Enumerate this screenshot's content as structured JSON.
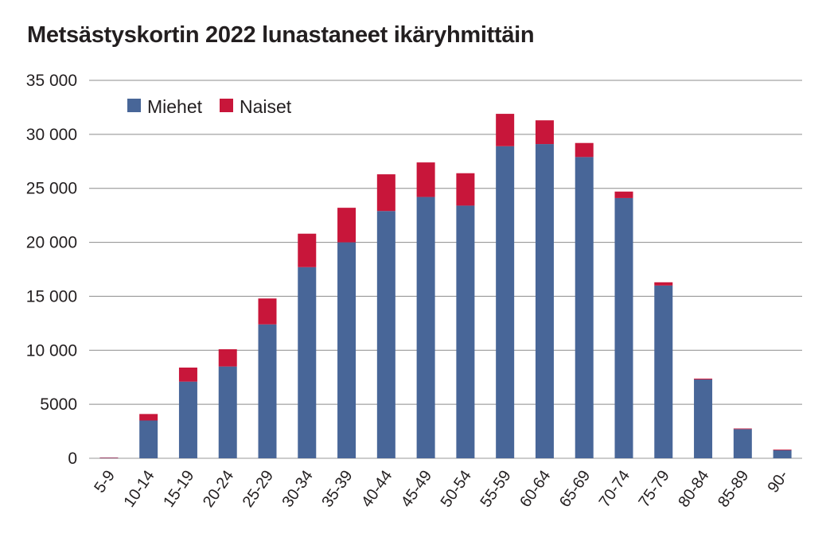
{
  "chart_data": {
    "type": "bar",
    "stacked": true,
    "title": "Metsästyskortin 2022 lunastaneet ikäryhmittäin",
    "xlabel": "",
    "ylabel": "",
    "ylim": [
      0,
      35000
    ],
    "yticks": [
      0,
      5000,
      10000,
      15000,
      20000,
      25000,
      30000,
      35000
    ],
    "ytick_labels": [
      "0",
      "5000",
      "10 000",
      "15 000",
      "20 000",
      "25 000",
      "30 000",
      "35 000"
    ],
    "grid": true,
    "legend": "top-left",
    "categories": [
      "5-9",
      "10-14",
      "15-19",
      "20-24",
      "25-29",
      "30-34",
      "35-39",
      "40-44",
      "45-49",
      "50-54",
      "55-59",
      "60-64",
      "65-69",
      "70-74",
      "75-79",
      "80-84",
      "85-89",
      "90-"
    ],
    "series": [
      {
        "name": "Miehet",
        "color": "#486698",
        "values": [
          30,
          3500,
          7100,
          8500,
          12400,
          17700,
          20000,
          22900,
          24200,
          23400,
          28900,
          29100,
          27900,
          24100,
          16000,
          7300,
          2700,
          750
        ]
      },
      {
        "name": "Naiset",
        "color": "#c8163a",
        "values": [
          40,
          600,
          1300,
          1600,
          2400,
          3100,
          3200,
          3400,
          3200,
          3000,
          3000,
          2200,
          1300,
          600,
          300,
          80,
          60,
          60
        ]
      }
    ]
  }
}
